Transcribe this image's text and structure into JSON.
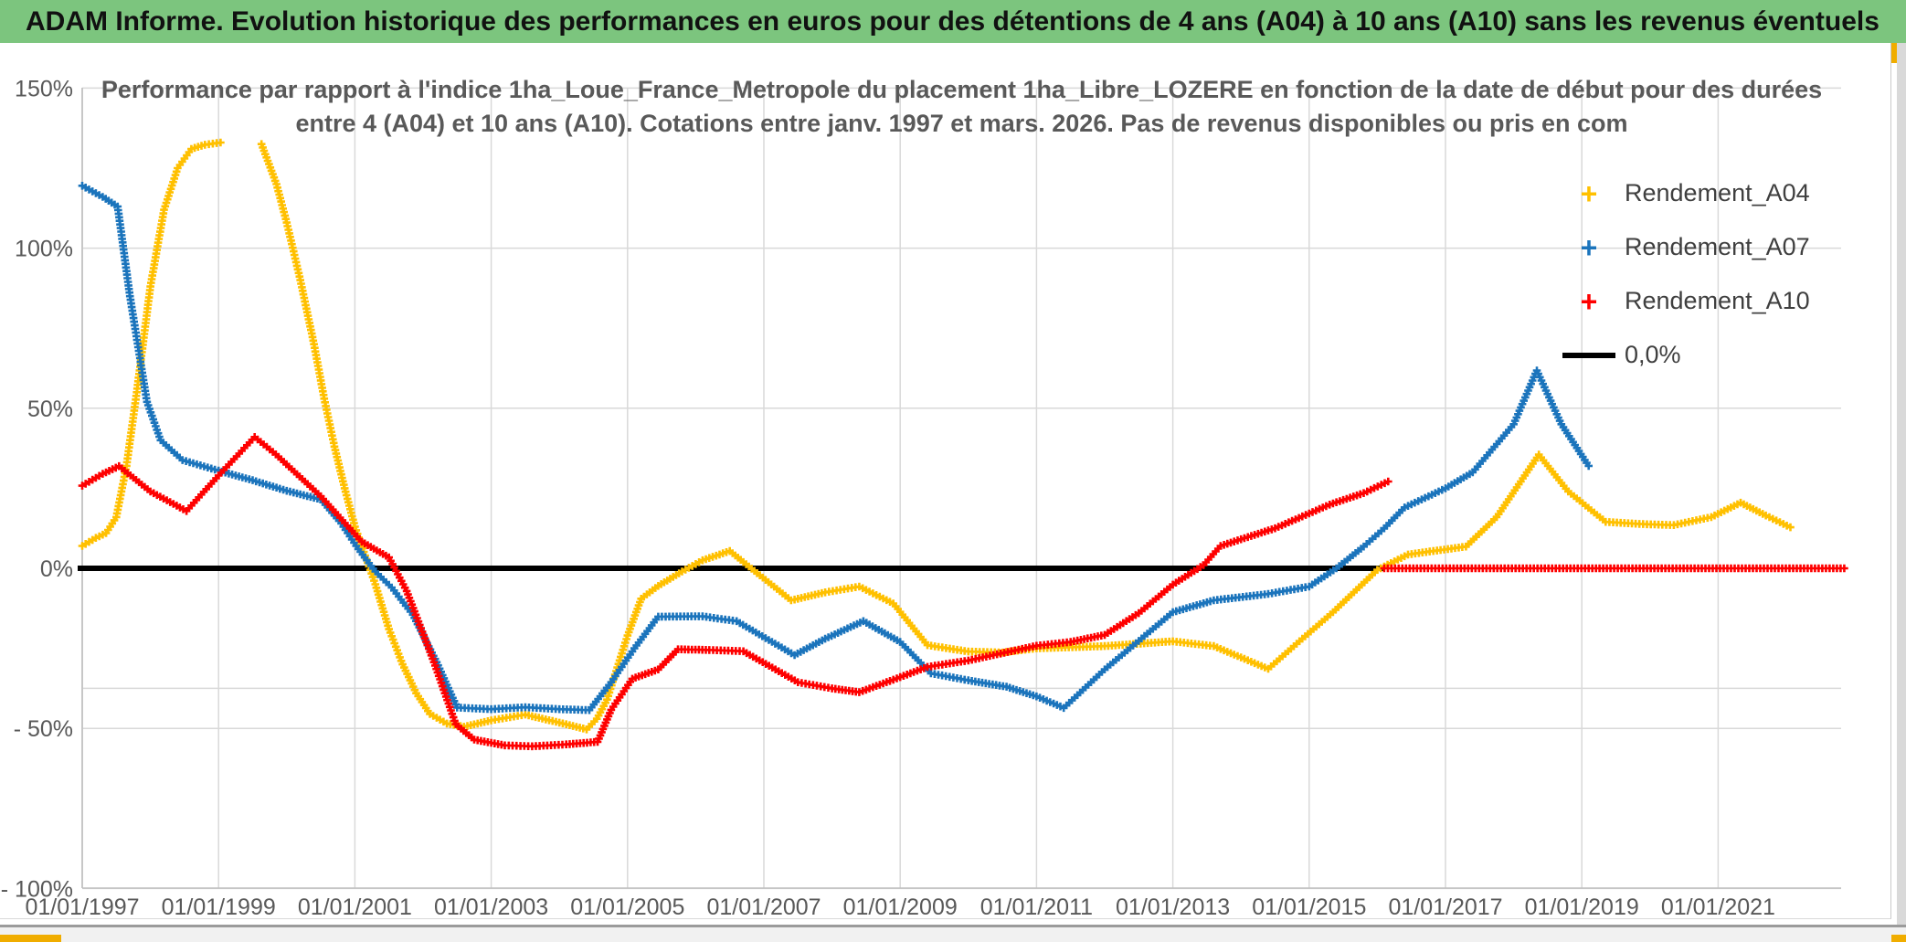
{
  "header": {
    "title": "ADAM Informe. Evolution historique des performances en euros pour des détentions de 4 ans (A04) à 10 ans (A10) sans les revenus éventuels"
  },
  "window": {
    "header_bg": "#7cc57e",
    "accent_orange": "#f0ad00",
    "right_gutter": "#d9d9d9",
    "grid_color": "#d9d9d9",
    "axis_color": "#bfbfbf",
    "label_color": "#595959"
  },
  "chart_data": {
    "type": "line",
    "title_line1": "Performance par rapport à l'indice 1ha_Loue_France_Metropole  du placement 1ha_Libre_LOZERE en fonction de la date de début pour des durées",
    "title_line2": "entre 4 (A04) et 10 ans (A10). Cotations entre janv. 1997 et mars. 2026. Pas de revenus disponibles ou pris en com",
    "xlabel": "",
    "ylabel": "",
    "xlim": [
      1997,
      2022.9
    ],
    "ylim": [
      -100,
      150
    ],
    "grid": true,
    "legend_position": "top-right",
    "x_tick_labels": [
      "01/01/1997",
      "01/01/1999",
      "01/01/2001",
      "01/01/2003",
      "01/01/2005",
      "01/01/2007",
      "01/01/2009",
      "01/01/2011",
      "01/01/2013",
      "01/01/2015",
      "01/01/2017",
      "01/01/2019",
      "01/01/2021"
    ],
    "x_tick_years": [
      1997,
      1999,
      2001,
      2003,
      2005,
      2007,
      2009,
      2011,
      2013,
      2015,
      2017,
      2019,
      2021
    ],
    "y_tick_labels": [
      "150%",
      "100%",
      "50%",
      "0%",
      "- 50%",
      "- 100%"
    ],
    "y_tick_values": [
      150,
      100,
      50,
      0,
      -50,
      -100
    ],
    "extra_gridline_pct": -37.5,
    "zero_line": {
      "label": "0,0%",
      "color": "#000000",
      "x_range_years": [
        1997,
        2016.1
      ],
      "value_pct": 0
    },
    "series": [
      {
        "name": "Rendement_A04",
        "color": "#FFC000",
        "marker": "plus",
        "segments": [
          [
            [
              1997,
              7
            ],
            [
              1997.2,
              9.5
            ],
            [
              1997.35,
              11
            ],
            [
              1997.5,
              16
            ],
            [
              1997.65,
              32
            ],
            [
              1997.8,
              55
            ],
            [
              1998,
              88
            ],
            [
              1998.2,
              112
            ],
            [
              1998.4,
              125
            ],
            [
              1998.6,
              131
            ],
            [
              1998.8,
              132.3
            ],
            [
              1999.03,
              133
            ]
          ],
          [
            [
              1999.63,
              132.5
            ],
            [
              1999.85,
              120
            ],
            [
              2000,
              108
            ],
            [
              2000.2,
              90
            ],
            [
              2000.4,
              70
            ],
            [
              2000.55,
              53
            ],
            [
              2000.7,
              38
            ],
            [
              2000.85,
              25
            ],
            [
              2001,
              13
            ],
            [
              2001.15,
              4
            ],
            [
              2001.3,
              -5
            ],
            [
              2001.5,
              -19
            ],
            [
              2001.7,
              -30
            ],
            [
              2001.9,
              -39
            ],
            [
              2002.1,
              -45.5
            ],
            [
              2002.35,
              -48.5
            ],
            [
              2002.6,
              -49.5
            ],
            [
              2003,
              -47.5
            ],
            [
              2003.5,
              -45.7
            ],
            [
              2004,
              -48.2
            ],
            [
              2004.4,
              -50.3
            ],
            [
              2004.55,
              -47
            ],
            [
              2004.7,
              -41
            ],
            [
              2004.85,
              -31
            ],
            [
              2005,
              -21
            ],
            [
              2005.2,
              -9.5
            ],
            [
              2005.45,
              -5.5
            ],
            [
              2005.8,
              -1
            ],
            [
              2006.1,
              2.5
            ],
            [
              2006.5,
              5.4
            ],
            [
              2006.9,
              -1.5
            ],
            [
              2007.4,
              -10
            ],
            [
              2007.9,
              -7.5
            ],
            [
              2008.4,
              -5.7
            ],
            [
              2008.9,
              -11
            ],
            [
              2009.4,
              -24
            ],
            [
              2010,
              -26
            ],
            [
              2010.5,
              -26.3
            ],
            [
              2011,
              -25
            ],
            [
              2012,
              -24.3
            ],
            [
              2013,
              -22.8
            ],
            [
              2013.6,
              -24.3
            ],
            [
              2014.4,
              -31.4
            ],
            [
              2014.9,
              -22
            ],
            [
              2015.35,
              -13.7
            ],
            [
              2016,
              -0.5
            ],
            [
              2016.45,
              4.3
            ],
            [
              2017.3,
              6.8
            ],
            [
              2017.75,
              16
            ],
            [
              2018.37,
              35.5
            ],
            [
              2018.8,
              24
            ],
            [
              2019.35,
              14.5
            ],
            [
              2019.9,
              13.8
            ],
            [
              2020.35,
              13.5
            ],
            [
              2020.9,
              16
            ],
            [
              2021.33,
              20.5
            ],
            [
              2021.7,
              16.5
            ],
            [
              2022.06,
              12.8
            ]
          ]
        ]
      },
      {
        "name": "Rendement_A07",
        "color": "#1B74BC",
        "marker": "plus",
        "segments": [
          [
            [
              1997,
              119.5
            ],
            [
              1997.3,
              116
            ],
            [
              1997.52,
              113
            ],
            [
              1997.7,
              85
            ],
            [
              1997.95,
              52
            ],
            [
              1998.15,
              40
            ],
            [
              1998.47,
              33.8
            ],
            [
              1999,
              30.5
            ],
            [
              1999.5,
              27.5
            ],
            [
              2000,
              24.2
            ],
            [
              2000.5,
              21.5
            ],
            [
              2000.8,
              14
            ],
            [
              2001.05,
              6
            ],
            [
              2001.3,
              -1
            ],
            [
              2001.54,
              -6
            ],
            [
              2001.85,
              -14.5
            ],
            [
              2002.2,
              -29.3
            ],
            [
              2002.5,
              -43.5
            ],
            [
              2003,
              -44
            ],
            [
              2003.5,
              -43.4
            ],
            [
              2004,
              -44
            ],
            [
              2004.44,
              -44.3
            ],
            [
              2004.76,
              -35.6
            ],
            [
              2005.1,
              -25
            ],
            [
              2005.45,
              -15.1
            ],
            [
              2006.1,
              -15
            ],
            [
              2006.6,
              -16.5
            ],
            [
              2007.45,
              -27.1
            ],
            [
              2007.9,
              -22
            ],
            [
              2008.46,
              -16.5
            ],
            [
              2009,
              -23
            ],
            [
              2009.45,
              -32.8
            ],
            [
              2010,
              -35
            ],
            [
              2010.56,
              -37
            ],
            [
              2011,
              -40
            ],
            [
              2011.4,
              -43.6
            ],
            [
              2012,
              -31.6
            ],
            [
              2013,
              -13.7
            ],
            [
              2013.6,
              -10
            ],
            [
              2014.4,
              -8
            ],
            [
              2015,
              -5.7
            ],
            [
              2015.4,
              0
            ],
            [
              2015.8,
              6.8
            ],
            [
              2016.1,
              12.5
            ],
            [
              2016.4,
              19
            ],
            [
              2017,
              25
            ],
            [
              2017.4,
              30
            ],
            [
              2018,
              45
            ],
            [
              2018.34,
              61.8
            ],
            [
              2018.7,
              45
            ],
            [
              2019.1,
              32
            ]
          ]
        ]
      },
      {
        "name": "Rendement_A10",
        "color": "#FE0000",
        "marker": "plus",
        "segments": [
          [
            [
              1997,
              25.8
            ],
            [
              1997.3,
              29.5
            ],
            [
              1997.54,
              31.9
            ],
            [
              1998,
              24
            ],
            [
              1998.53,
              17.9
            ],
            [
              1999,
              29
            ],
            [
              1999.53,
              41
            ],
            [
              1999.84,
              35.6
            ],
            [
              2000.5,
              22.5
            ],
            [
              2001.1,
              8.3
            ],
            [
              2001.5,
              3.4
            ],
            [
              2001.76,
              -7.1
            ],
            [
              2002.16,
              -29.3
            ],
            [
              2002.48,
              -48.7
            ],
            [
              2002.75,
              -53.5
            ],
            [
              2003.2,
              -55.3
            ],
            [
              2003.6,
              -55.6
            ],
            [
              2004.1,
              -55
            ],
            [
              2004.56,
              -54.2
            ],
            [
              2004.76,
              -44.2
            ],
            [
              2005.07,
              -34.5
            ],
            [
              2005.45,
              -31.6
            ],
            [
              2005.74,
              -25.3
            ],
            [
              2006.2,
              -25.5
            ],
            [
              2006.7,
              -25.9
            ],
            [
              2007.5,
              -35.6
            ],
            [
              2008,
              -37.5
            ],
            [
              2008.4,
              -38.7
            ],
            [
              2009,
              -34
            ],
            [
              2009.4,
              -30.8
            ],
            [
              2010,
              -28.8
            ],
            [
              2011,
              -24.2
            ],
            [
              2011.5,
              -23
            ],
            [
              2012,
              -20.8
            ],
            [
              2012.5,
              -14
            ],
            [
              2013,
              -5.1
            ],
            [
              2013.45,
              1
            ],
            [
              2013.7,
              7
            ],
            [
              2014.5,
              12.5
            ],
            [
              2015.3,
              19.9
            ],
            [
              2015.8,
              23.5
            ],
            [
              2016.16,
              27.1
            ]
          ],
          [
            [
              2016.1,
              0
            ],
            [
              2022.85,
              0
            ]
          ]
        ]
      }
    ],
    "legend": [
      {
        "label": "Rendement_A04",
        "color": "#FFC000",
        "swatch": "plus"
      },
      {
        "label": "Rendement_A07",
        "color": "#1B74BC",
        "swatch": "plus"
      },
      {
        "label": "Rendement_A10",
        "color": "#FE0000",
        "swatch": "plus"
      },
      {
        "label": "0,0%",
        "color": "#000000",
        "swatch": "line"
      }
    ]
  }
}
